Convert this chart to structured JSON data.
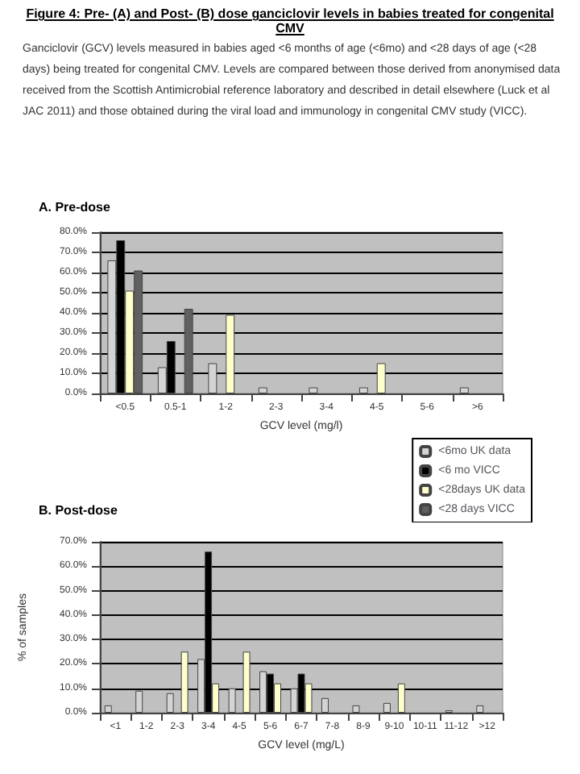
{
  "chart_data": [
    {
      "type": "bar",
      "title": "A. Pre-dose",
      "annotations": [
        "Figure 4: Pre- (A) and Post- (B) dose ganciclovir levels in babies treated for congenital CMV",
        "Ganciclovir (GCV) levels measured in babies aged <6 months of age (<6mo) and <28 days of age (<28 days) being treated for congenital CMV.  Levels are compared between those derived from anonymised data received from the Scottish Antimicrobial reference laboratory and described in detail elsewhere (Luck et al JAC 2011) and those obtained during the viral load and immunology in congenital CMV study (VICC)."
      ],
      "xlabel": "GCV level (mg/l)",
      "categories": [
        "<0.5",
        "0.5-1",
        "1-2",
        "2-3",
        "3-4",
        "4-5",
        "5-6",
        ">6"
      ],
      "series": [
        {
          "name": "<6mo UK data",
          "color": "#d4d4d4",
          "values": [
            66,
            13,
            15,
            3,
            3,
            3,
            null,
            3
          ]
        },
        {
          "name": "<6 mo VICC",
          "color": "#000000",
          "values": [
            76,
            26,
            null,
            null,
            null,
            null,
            null,
            null
          ]
        },
        {
          "name": "<28days UK data",
          "color": "#ffffcc",
          "values": [
            51,
            null,
            39,
            null,
            null,
            15,
            null,
            null
          ]
        },
        {
          "name": "<28 days VICC",
          "color": "#606060",
          "values": [
            61,
            42,
            null,
            null,
            null,
            null,
            null,
            null
          ]
        }
      ],
      "ylim": [
        0,
        80
      ],
      "yticks": [
        {
          "value": 0,
          "label": "0.0%"
        },
        {
          "value": 10,
          "label": "10.0%"
        },
        {
          "value": 20,
          "label": "20.0%"
        },
        {
          "value": 30,
          "label": "30.0%"
        },
        {
          "value": 40,
          "label": "40.0%"
        },
        {
          "value": 50,
          "label": "50.0%"
        },
        {
          "value": 60,
          "label": "60.0%"
        },
        {
          "value": 70,
          "label": "70.0%"
        },
        {
          "value": 80,
          "label": "80.0%"
        }
      ],
      "grid": "y",
      "legend": "bottom right"
    },
    {
      "type": "bar",
      "title": "B. Post-dose",
      "xlabel": "GCV level (mg/L)",
      "ylabel": "% of samples",
      "categories": [
        "<1",
        "1-2",
        "2-3",
        "3-4",
        "4-5",
        "5-6",
        "6-7",
        "7-8",
        "8-9",
        "9-10",
        "10-11",
        "11-12",
        ">12"
      ],
      "series": [
        {
          "color": "#d4d4d4",
          "values": [
            3,
            9,
            8,
            22,
            10,
            17,
            10,
            6,
            3,
            4,
            null,
            1,
            3
          ]
        },
        {
          "color": "#000000",
          "values": [
            null,
            null,
            null,
            66,
            null,
            16,
            16,
            null,
            null,
            null,
            null,
            null,
            null
          ]
        },
        {
          "color": "#ffffcc",
          "values": [
            null,
            null,
            25,
            12,
            25,
            12,
            12,
            null,
            null,
            12,
            null,
            null,
            null
          ]
        }
      ],
      "ylim": [
        0,
        70
      ],
      "yticks": [
        {
          "value": 0,
          "label": "0.0%"
        },
        {
          "value": 10,
          "label": "10.0%"
        },
        {
          "value": 20,
          "label": "20.0%"
        },
        {
          "value": 30,
          "label": "30.0%"
        },
        {
          "value": 40,
          "label": "40.0%"
        },
        {
          "value": 50,
          "label": "50.0%"
        },
        {
          "value": 60,
          "label": "60.0%"
        },
        {
          "value": 70,
          "label": "70.0%"
        }
      ],
      "grid": "y"
    }
  ]
}
